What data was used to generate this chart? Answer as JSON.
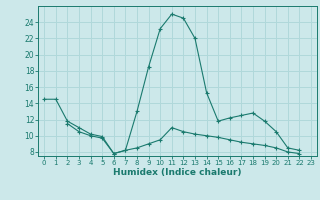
{
  "xlabel": "Humidex (Indice chaleur)",
  "x_values": [
    0,
    1,
    2,
    3,
    4,
    5,
    6,
    7,
    8,
    9,
    10,
    11,
    12,
    13,
    14,
    15,
    16,
    17,
    18,
    19,
    20,
    21,
    22,
    23
  ],
  "line1_y": [
    14.5,
    14.5,
    11.8,
    11.0,
    10.2,
    9.9,
    7.8,
    8.2,
    13.0,
    18.5,
    23.2,
    25.0,
    24.5,
    22.0,
    15.3,
    11.8,
    12.2,
    12.5,
    12.8,
    11.8,
    10.5,
    8.5,
    8.2,
    null
  ],
  "line2_y": [
    null,
    null,
    11.5,
    10.5,
    10.0,
    9.7,
    7.8,
    8.2,
    8.5,
    9.0,
    9.5,
    11.0,
    10.5,
    10.2,
    10.0,
    9.8,
    9.5,
    9.2,
    9.0,
    8.8,
    8.5,
    8.0,
    7.8,
    null
  ],
  "line_color": "#1a7a6e",
  "bg_color": "#cce8ea",
  "grid_color": "#b0d8da",
  "ylim": [
    7.5,
    26
  ],
  "xlim": [
    -0.5,
    23.5
  ],
  "yticks": [
    8,
    10,
    12,
    14,
    16,
    18,
    20,
    22,
    24
  ],
  "xticks": [
    0,
    1,
    2,
    3,
    4,
    5,
    6,
    7,
    8,
    9,
    10,
    11,
    12,
    13,
    14,
    15,
    16,
    17,
    18,
    19,
    20,
    21,
    22,
    23
  ]
}
